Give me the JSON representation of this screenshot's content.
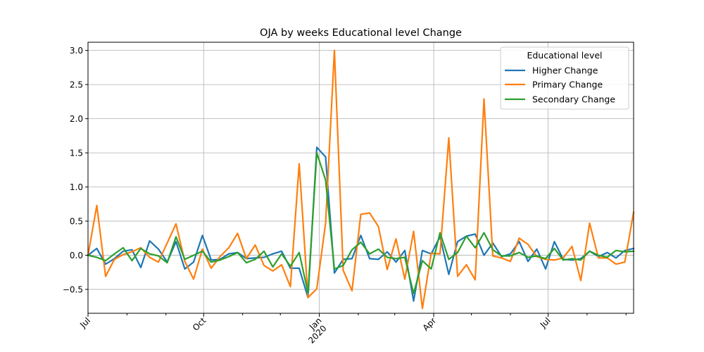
{
  "chart_data": {
    "type": "line",
    "title": "OJA by weeks Educational level Change",
    "xlabel": "",
    "ylabel": "",
    "x_type": "date",
    "x": [
      "2019-07-01",
      "2019-07-08",
      "2019-07-15",
      "2019-07-22",
      "2019-07-29",
      "2019-08-05",
      "2019-08-12",
      "2019-08-19",
      "2019-08-26",
      "2019-09-02",
      "2019-09-09",
      "2019-09-16",
      "2019-09-23",
      "2019-09-30",
      "2019-10-07",
      "2019-10-14",
      "2019-10-21",
      "2019-10-28",
      "2019-11-04",
      "2019-11-11",
      "2019-11-18",
      "2019-11-25",
      "2019-12-02",
      "2019-12-09",
      "2019-12-16",
      "2019-12-23",
      "2019-12-30",
      "2020-01-06",
      "2020-01-13",
      "2020-01-20",
      "2020-01-27",
      "2020-02-03",
      "2020-02-10",
      "2020-02-17",
      "2020-02-24",
      "2020-03-02",
      "2020-03-09",
      "2020-03-16",
      "2020-03-23",
      "2020-03-30",
      "2020-04-06",
      "2020-04-13",
      "2020-04-20",
      "2020-04-27",
      "2020-05-04",
      "2020-05-11",
      "2020-05-18",
      "2020-05-25",
      "2020-06-01",
      "2020-06-08",
      "2020-06-15",
      "2020-06-22",
      "2020-06-29",
      "2020-07-06",
      "2020-07-13",
      "2020-07-20",
      "2020-07-27",
      "2020-08-03",
      "2020-08-10",
      "2020-08-17",
      "2020-08-24",
      "2020-08-31",
      "2020-09-07"
    ],
    "series": [
      {
        "name": "Higher Change",
        "color": "#1f77b4",
        "values": [
          0.0,
          0.1,
          -0.13,
          -0.05,
          0.06,
          0.08,
          -0.18,
          0.21,
          0.09,
          -0.1,
          0.2,
          -0.2,
          -0.1,
          0.29,
          -0.07,
          -0.06,
          0.02,
          0.04,
          -0.05,
          -0.04,
          -0.03,
          0.02,
          0.06,
          -0.19,
          -0.19,
          -0.62,
          1.58,
          1.44,
          -0.26,
          -0.06,
          -0.05,
          0.29,
          -0.05,
          -0.06,
          0.05,
          -0.1,
          0.07,
          -0.67,
          0.07,
          0.02,
          0.27,
          -0.28,
          0.2,
          0.28,
          0.31,
          0.0,
          0.18,
          -0.02,
          0.02,
          0.2,
          -0.09,
          0.09,
          -0.2,
          0.2,
          -0.06,
          -0.07,
          -0.05,
          0.06,
          -0.02,
          0.04,
          -0.04,
          0.07,
          0.1
        ]
      },
      {
        "name": "Primary Change",
        "color": "#ff7f0e",
        "values": [
          0.0,
          0.73,
          -0.31,
          -0.06,
          0.01,
          0.05,
          0.11,
          -0.03,
          -0.1,
          0.18,
          0.46,
          -0.09,
          -0.35,
          0.09,
          -0.19,
          -0.02,
          0.11,
          0.32,
          -0.05,
          0.15,
          -0.15,
          -0.23,
          -0.14,
          -0.46,
          1.34,
          -0.62,
          -0.49,
          0.47,
          3.0,
          -0.22,
          -0.52,
          0.6,
          0.62,
          0.42,
          -0.21,
          0.24,
          -0.35,
          0.35,
          -0.78,
          0.03,
          0.02,
          1.72,
          -0.31,
          -0.14,
          -0.36,
          2.29,
          -0.01,
          -0.04,
          -0.09,
          0.25,
          0.16,
          -0.02,
          -0.06,
          -0.07,
          -0.04,
          0.13,
          -0.37,
          0.47,
          -0.04,
          -0.04,
          -0.13,
          -0.1,
          0.63
        ]
      },
      {
        "name": "Secondary Change",
        "color": "#2ca02c",
        "values": [
          0.0,
          -0.03,
          -0.08,
          0.02,
          0.11,
          -0.08,
          0.1,
          0.02,
          -0.01,
          -0.11,
          0.27,
          -0.06,
          0.0,
          0.06,
          -0.1,
          -0.07,
          -0.02,
          0.04,
          -0.11,
          -0.06,
          0.06,
          -0.17,
          0.02,
          -0.16,
          0.04,
          -0.55,
          1.5,
          1.1,
          -0.2,
          -0.15,
          0.08,
          0.19,
          0.02,
          0.09,
          -0.03,
          -0.05,
          -0.03,
          -0.56,
          -0.08,
          -0.2,
          0.33,
          -0.06,
          0.04,
          0.28,
          0.11,
          0.33,
          0.08,
          -0.01,
          -0.01,
          0.04,
          -0.03,
          -0.01,
          -0.05,
          0.1,
          -0.07,
          -0.05,
          -0.07,
          0.06,
          0.0,
          -0.03,
          0.07,
          0.05,
          0.06
        ]
      }
    ],
    "xlim": [
      "2019-07-01",
      "2020-09-07"
    ],
    "ylim": [
      -0.85,
      3.12
    ],
    "y_ticks": [
      -0.5,
      0.0,
      0.5,
      1.0,
      1.5,
      2.0,
      2.5,
      3.0
    ],
    "y_tick_labels": [
      "−0.5",
      "0.0",
      "0.5",
      "1.0",
      "1.5",
      "2.0",
      "2.5",
      "3.0"
    ],
    "x_major_ticks": [
      {
        "date": "2019-07-01",
        "label": "Jul",
        "sublabel": ""
      },
      {
        "date": "2019-10-01",
        "label": "Oct",
        "sublabel": ""
      },
      {
        "date": "2020-01-01",
        "label": "Jan",
        "sublabel": "2020"
      },
      {
        "date": "2020-04-01",
        "label": "Apr",
        "sublabel": ""
      },
      {
        "date": "2020-07-01",
        "label": "Jul",
        "sublabel": ""
      }
    ],
    "x_minor_ticks": [
      "2019-08-01",
      "2019-09-01",
      "2019-11-01",
      "2019-12-01",
      "2020-02-01",
      "2020-03-01",
      "2020-05-01",
      "2020-06-01",
      "2020-08-01",
      "2020-09-01"
    ],
    "grid": true,
    "legend": {
      "title": "Educational level",
      "position": "upper right"
    }
  }
}
